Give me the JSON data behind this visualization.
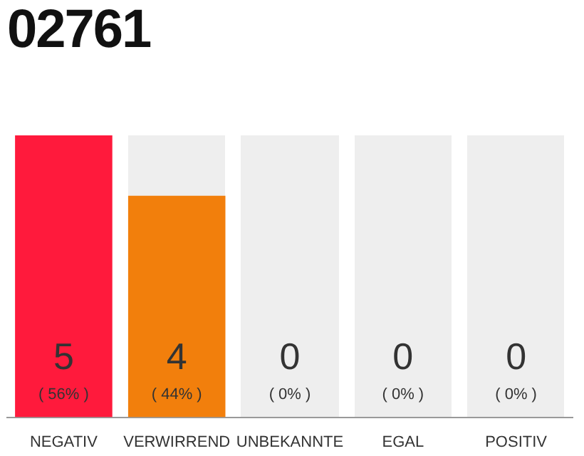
{
  "chart_data": {
    "type": "bar",
    "title": "02761",
    "categories": [
      "NEGATIV",
      "VERWIRREND",
      "UNBEKANNTE",
      "EGAL",
      "POSITIV"
    ],
    "values": [
      56,
      44,
      0,
      0,
      0
    ],
    "colors": [
      "#ff1a3c",
      "#f27f0c",
      "#ff1a3c",
      "#ff1a3c",
      "#ff1a3c"
    ],
    "value_labels": [
      "( 56% )",
      "( 44% )",
      "( 0% )",
      "( 0% )",
      "( 0% )"
    ],
    "annotations": [
      "5",
      "4",
      "0",
      "0",
      "0"
    ]
  }
}
